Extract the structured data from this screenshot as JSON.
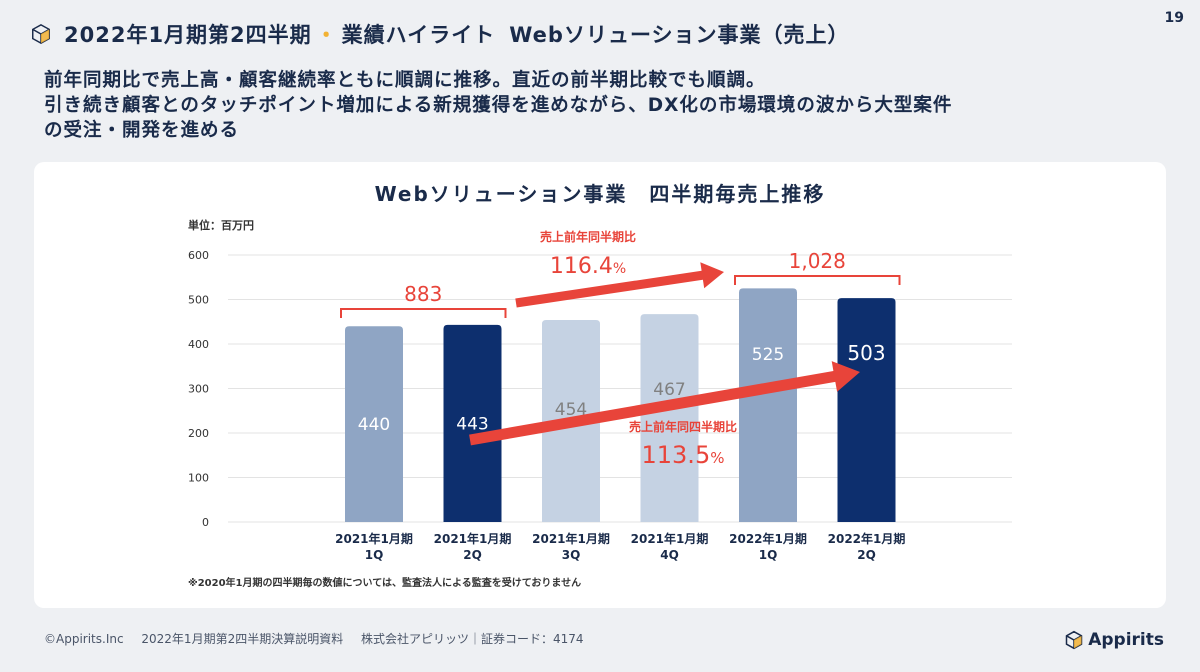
{
  "header": {
    "title_main": "2022年1月期第2四半期",
    "title_dot": "・",
    "title_highlight": "業績ハイライト",
    "title_sub": "Webソリューション事業（売上）",
    "page_number": "19"
  },
  "lead": {
    "line1": "前年同期比で売上高・顧客継続率ともに順調に推移。直近の前半期比較でも順調。",
    "line2": "引き続き顧客とのタッチポイント増加による新規獲得を進めながら、DX化の市場環境の波から大型案件",
    "line3": "の受注・開発を進める"
  },
  "chart_data": {
    "type": "bar",
    "title": "Webソリューション事業　四半期毎売上推移",
    "unit_label": "単位：百万円",
    "categories": [
      [
        "2021年1月期",
        "1Q"
      ],
      [
        "2021年1月期",
        "2Q"
      ],
      [
        "2021年1月期",
        "3Q"
      ],
      [
        "2021年1月期",
        "4Q"
      ],
      [
        "2022年1月期",
        "1Q"
      ],
      [
        "2022年1月期",
        "2Q"
      ]
    ],
    "values": [
      440,
      443,
      454,
      467,
      525,
      503
    ],
    "value_labels": [
      "440",
      "443",
      "454",
      "467",
      "525",
      "503"
    ],
    "bar_colors": [
      "#8fa5c4",
      "#0d2f6e",
      "#c5d2e3",
      "#c5d2e3",
      "#8fa5c4",
      "#0d2f6e"
    ],
    "label_colors": [
      "#ffffff",
      "#ffffff",
      "#808080",
      "#808080",
      "#ffffff",
      "#ffffff"
    ],
    "ylim": [
      0,
      600
    ],
    "yticks": [
      0,
      100,
      200,
      300,
      400,
      500,
      600
    ],
    "grid": true,
    "brackets": [
      {
        "from": 0,
        "to": 1,
        "label": "883"
      },
      {
        "from": 4,
        "to": 5,
        "label": "1,028"
      }
    ],
    "annotations": [
      {
        "title": "売上前年同半期比",
        "value": "116.4",
        "unit": "%"
      },
      {
        "title": "売上前年同四半期比",
        "value": "113.5",
        "unit": "%"
      }
    ],
    "footnote": "※2020年1月期の四半期毎の数値については、監査法人による監査を受けておりません"
  },
  "colors": {
    "accent_red": "#e8443a",
    "navy": "#0d2f6e",
    "title_dot": "#f2b233"
  },
  "footer": {
    "copyright": "©Appirits.Inc",
    "doc_title": "2022年1月期第2四半期決算説明資料",
    "company": "株式会社アピリッツ｜証券コード：4174",
    "brand": "Appirits"
  }
}
